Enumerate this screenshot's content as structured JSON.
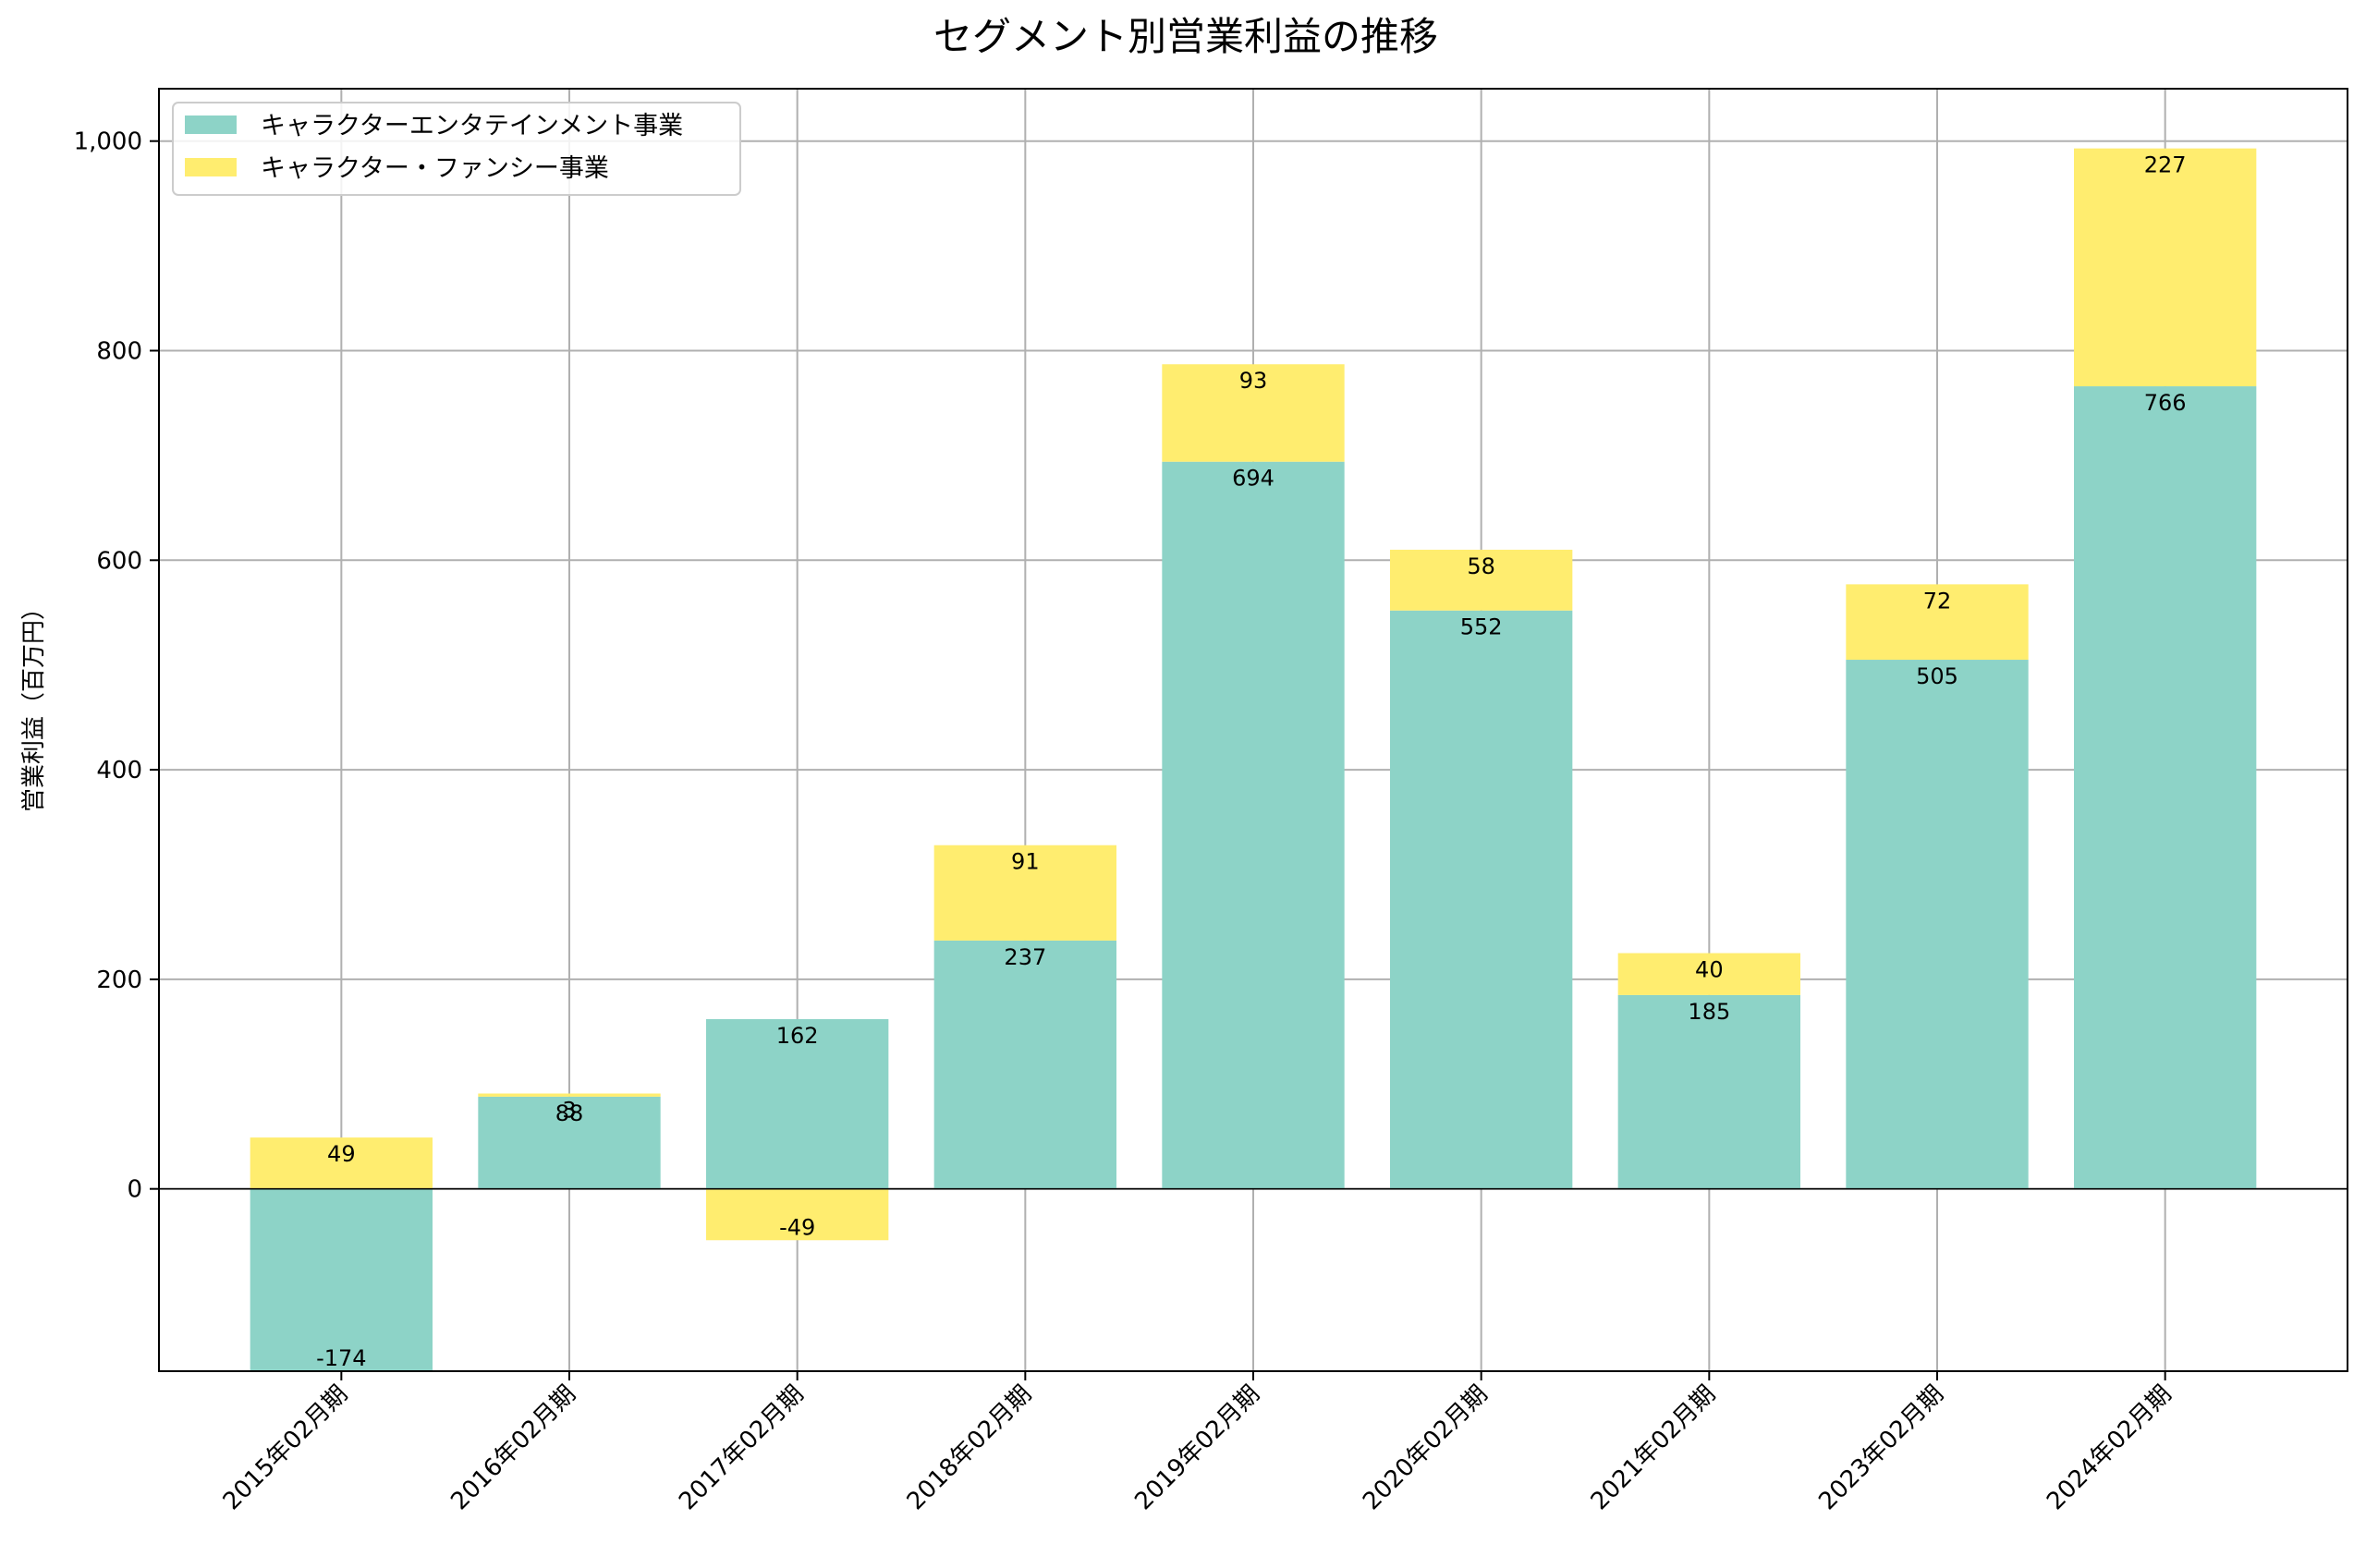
{
  "chart_data": {
    "type": "bar",
    "stacked": true,
    "title": "セグメント別営業利益の推移",
    "xlabel": "",
    "ylabel": "営業利益（百万円）",
    "categories": [
      "2015年02月期",
      "2016年02月期",
      "2017年02月期",
      "2018年02月期",
      "2019年02月期",
      "2020年02月期",
      "2021年02月期",
      "2023年02月期",
      "2024年02月期"
    ],
    "series": [
      {
        "name": "キャラクターエンタテインメント事業",
        "color": "#8dd3c7",
        "values": [
          -174,
          88,
          162,
          237,
          694,
          552,
          185,
          505,
          766
        ],
        "labels": [
          "-174",
          "88",
          "162",
          "237",
          "694",
          "552",
          "185",
          "505",
          "766"
        ]
      },
      {
        "name": "キャラクター・ファンシー事業",
        "color": "#ffed6f",
        "values": [
          49,
          3,
          -49,
          91,
          93,
          58,
          40,
          72,
          227
        ],
        "labels": [
          "49",
          "3",
          "-49",
          "91",
          "93",
          "58",
          "40",
          "72",
          "227"
        ]
      }
    ],
    "ylim": [
      -174,
      1050
    ],
    "yticks": [
      0,
      200,
      400,
      600,
      800,
      1000
    ],
    "ytick_labels": [
      "0",
      "200",
      "400",
      "600",
      "800",
      "1,000"
    ],
    "grid": true,
    "legend_position": "top-left"
  }
}
